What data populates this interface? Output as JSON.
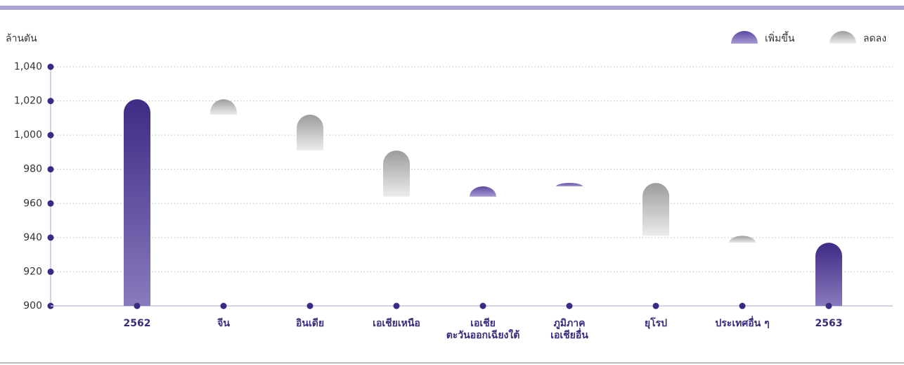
{
  "chart_data": {
    "type": "waterfall",
    "y_label": "ล้านตัน",
    "categories": [
      "2562",
      "จีน",
      "อินเดีย",
      "เอเชียเหนือ",
      "เอเชีย\nตะวันออกเฉียงใต้",
      "ภูมิภาค\nเอเชียอื่น",
      "ยุโรป",
      "ประเทศอื่น ๆ",
      "2563"
    ],
    "values": [
      1021,
      -9,
      -21,
      -27,
      6,
      2,
      -31,
      -4,
      937
    ],
    "legend": [
      {
        "name": "เพิ่มขึ้น",
        "color": "#6a55a8"
      },
      {
        "name": "ลดลง",
        "color": "#a8a8a8"
      }
    ],
    "total_color": "#3f2a85",
    "ylim": [
      900,
      1040
    ],
    "yticks": [
      900,
      920,
      940,
      960,
      980,
      {
        "value": 1000,
        "label": "1,000"
      },
      {
        "value": 1020,
        "label": "1,020"
      },
      {
        "value": 1040,
        "label": "1,040"
      }
    ],
    "grid": true
  }
}
